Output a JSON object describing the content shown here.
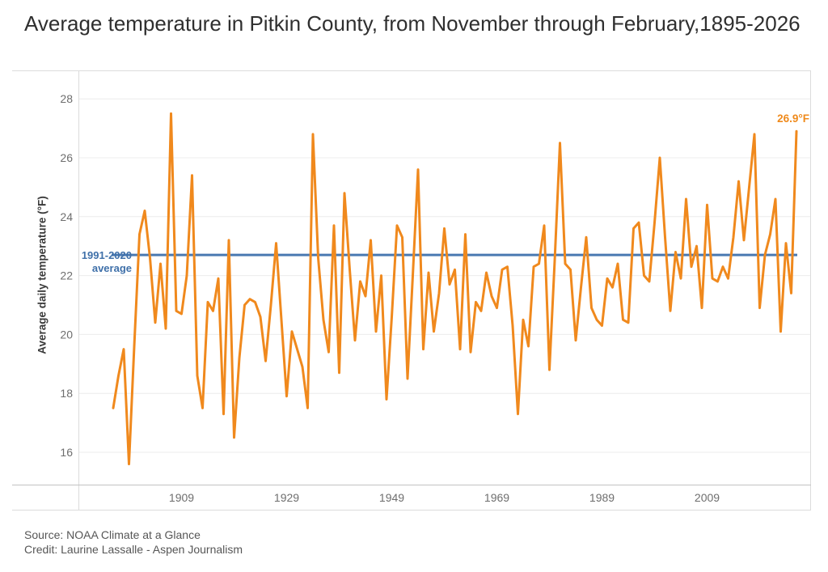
{
  "title": "Average temperature in Pitkin County, from November through February,1895-2026",
  "source": "Source: NOAA Climate at a Glance",
  "credit": "Credit: Laurine Lassalle - Aspen Journalism",
  "y_axis": {
    "label": "Average daily temperature (°F)",
    "ticks": [
      16,
      18,
      20,
      22,
      24,
      26,
      28
    ]
  },
  "x_axis": {
    "ticks": [
      1909,
      1929,
      1949,
      1969,
      1989,
      2009
    ]
  },
  "annotations": {
    "last_value": "26.9°F",
    "average_line": "1991-2020 average"
  },
  "colors": {
    "series": "#f0891d",
    "average_line": "#4a79b1",
    "annotation_orange": "#ef8a1c",
    "annotation_blue": "#3f70a9",
    "grid": "#ececec",
    "axis_line": "#c2c2c2",
    "frame": "#dcdcdc",
    "axis_text": "#6e6e6e",
    "title_text": "#2f2f2f",
    "source_text": "#565656"
  },
  "chart_data": {
    "type": "line",
    "title": "Average temperature in Pitkin County, from November through February,1895-2026",
    "xlabel": "",
    "ylabel": "Average daily temperature (°F)",
    "x_range": [
      1896,
      2026
    ],
    "ylim": [
      15,
      28.8
    ],
    "x_tick_labels": [
      1909,
      1929,
      1949,
      1969,
      1989,
      2009
    ],
    "y_tick_labels": [
      16,
      18,
      20,
      22,
      24,
      26,
      28
    ],
    "grid": "horizontal-only",
    "legend_position": "none",
    "reference_line": {
      "label": "1991-2020 average",
      "value": 22.7
    },
    "last_point_label": "26.9°F",
    "years": [
      1896,
      1897,
      1898,
      1899,
      1900,
      1901,
      1902,
      1903,
      1904,
      1905,
      1906,
      1907,
      1908,
      1909,
      1910,
      1911,
      1912,
      1913,
      1914,
      1915,
      1916,
      1917,
      1918,
      1919,
      1920,
      1921,
      1922,
      1923,
      1924,
      1925,
      1926,
      1927,
      1928,
      1929,
      1930,
      1931,
      1932,
      1933,
      1934,
      1935,
      1936,
      1937,
      1938,
      1939,
      1940,
      1941,
      1942,
      1943,
      1944,
      1945,
      1946,
      1947,
      1948,
      1949,
      1950,
      1951,
      1952,
      1953,
      1954,
      1955,
      1956,
      1957,
      1958,
      1959,
      1960,
      1961,
      1962,
      1963,
      1964,
      1965,
      1966,
      1967,
      1968,
      1969,
      1970,
      1971,
      1972,
      1973,
      1974,
      1975,
      1976,
      1977,
      1978,
      1979,
      1980,
      1981,
      1982,
      1983,
      1984,
      1985,
      1986,
      1987,
      1988,
      1989,
      1990,
      1991,
      1992,
      1993,
      1994,
      1995,
      1996,
      1997,
      1998,
      1999,
      2000,
      2001,
      2002,
      2003,
      2004,
      2005,
      2006,
      2007,
      2008,
      2009,
      2010,
      2011,
      2012,
      2013,
      2014,
      2015,
      2016,
      2017,
      2018,
      2019,
      2020,
      2021,
      2022,
      2023,
      2024,
      2025,
      2026
    ],
    "values": [
      17.5,
      18.6,
      19.5,
      15.6,
      19.6,
      23.4,
      24.2,
      22.6,
      20.4,
      22.4,
      20.2,
      27.5,
      20.8,
      20.7,
      22.0,
      25.4,
      18.6,
      17.5,
      21.1,
      20.8,
      21.9,
      17.3,
      23.2,
      16.5,
      19.2,
      21.0,
      21.2,
      21.1,
      20.6,
      19.1,
      21.0,
      23.1,
      20.5,
      17.9,
      20.1,
      19.5,
      18.9,
      17.5,
      26.8,
      22.6,
      20.5,
      19.4,
      23.7,
      18.7,
      24.8,
      22.2,
      19.8,
      21.8,
      21.3,
      23.2,
      20.1,
      22.0,
      17.8,
      20.6,
      23.7,
      23.3,
      18.5,
      22.0,
      25.6,
      19.5,
      22.1,
      20.1,
      21.4,
      23.6,
      21.7,
      22.2,
      19.5,
      23.4,
      19.4,
      21.1,
      20.8,
      22.1,
      21.3,
      20.9,
      22.2,
      22.3,
      20.3,
      17.3,
      20.5,
      19.6,
      22.3,
      22.4,
      23.7,
      18.8,
      22.5,
      26.5,
      22.4,
      22.2,
      19.8,
      21.6,
      23.3,
      20.9,
      20.5,
      20.3,
      21.9,
      21.6,
      22.4,
      20.5,
      20.4,
      23.6,
      23.8,
      22.0,
      21.8,
      23.8,
      26.0,
      23.3,
      20.8,
      22.8,
      21.9,
      24.6,
      22.3,
      23.0,
      20.9,
      24.4,
      21.9,
      21.8,
      22.3,
      21.9,
      23.3,
      25.2,
      23.2,
      25.0,
      26.8,
      20.9,
      22.7,
      23.4,
      24.6,
      20.1,
      23.1,
      21.4,
      26.9
    ]
  }
}
